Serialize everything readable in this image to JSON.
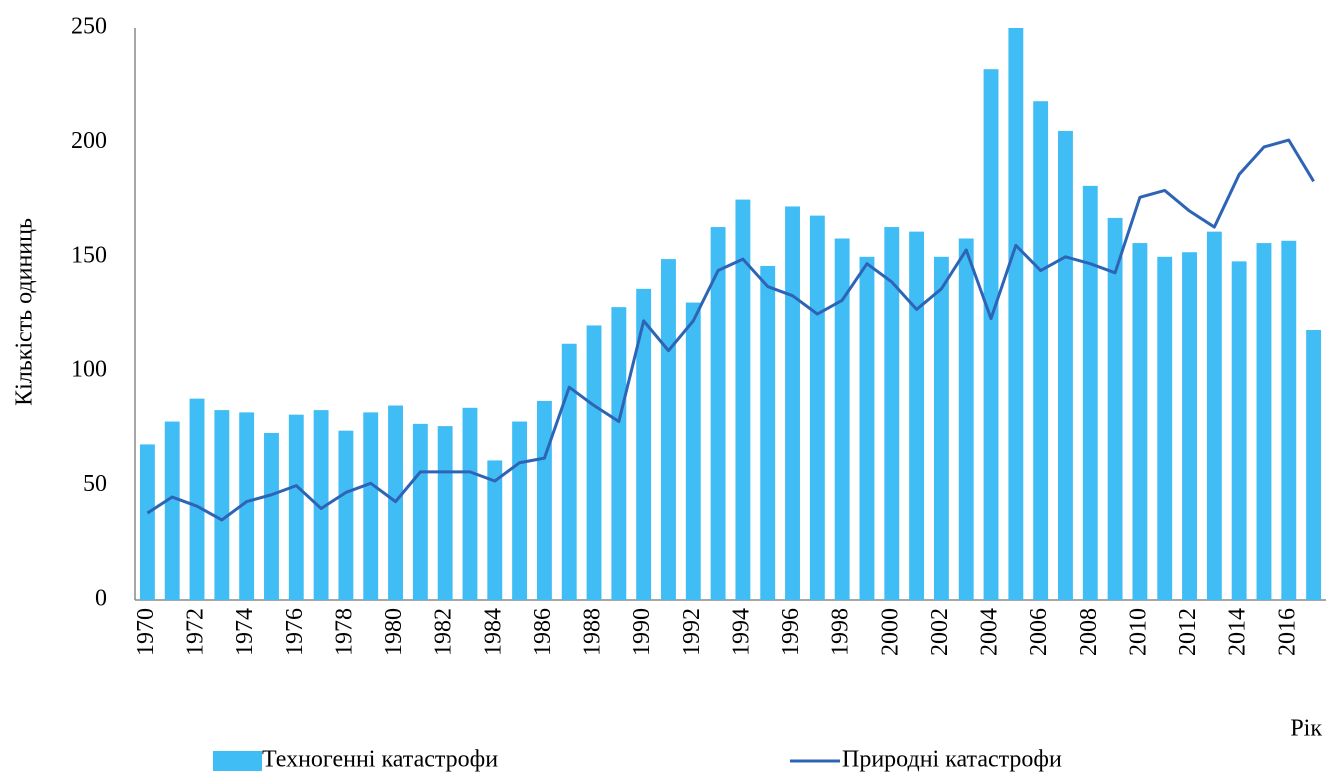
{
  "chart_data": {
    "type": "bar",
    "y_label": "Кількість одиниць",
    "x_label": "Рік",
    "categories": [
      "1970",
      null,
      "1972",
      null,
      "1974",
      null,
      "1976",
      null,
      "1978",
      null,
      "1980",
      null,
      "1982",
      null,
      "1984",
      null,
      "1986",
      null,
      "1988",
      null,
      "1990",
      null,
      "1992",
      null,
      "1994",
      null,
      "1996",
      null,
      "1998",
      null,
      "2000",
      null,
      "2002",
      null,
      "2004",
      null,
      "2006",
      null,
      "2008",
      null,
      "2010",
      null,
      "2012",
      null,
      "2014",
      null,
      "2016",
      null
    ],
    "series": [
      {
        "name": "Техногенні катастрофи",
        "type": "bar",
        "color": "#41bdf5",
        "values": [
          68,
          78,
          88,
          83,
          82,
          73,
          81,
          83,
          74,
          82,
          85,
          77,
          76,
          84,
          61,
          78,
          87,
          112,
          120,
          128,
          136,
          149,
          130,
          163,
          175,
          146,
          172,
          168,
          158,
          150,
          163,
          161,
          150,
          158,
          232,
          250,
          218,
          205,
          181,
          167,
          156,
          150,
          152,
          161,
          148,
          156,
          157,
          118
        ]
      },
      {
        "name": "Природні катастрофи",
        "type": "line",
        "color": "#2e64b5",
        "values": [
          38,
          45,
          41,
          35,
          43,
          46,
          50,
          40,
          47,
          51,
          43,
          56,
          56,
          56,
          52,
          60,
          62,
          93,
          85,
          78,
          122,
          109,
          122,
          144,
          149,
          137,
          133,
          125,
          131,
          147,
          139,
          127,
          136,
          153,
          123,
          155,
          144,
          150,
          147,
          143,
          176,
          179,
          170,
          163,
          186,
          198,
          201,
          183
        ]
      }
    ],
    "ylim": [
      0,
      250
    ],
    "yticks": [
      0,
      50,
      100,
      150,
      200,
      250
    ],
    "grid": false
  }
}
